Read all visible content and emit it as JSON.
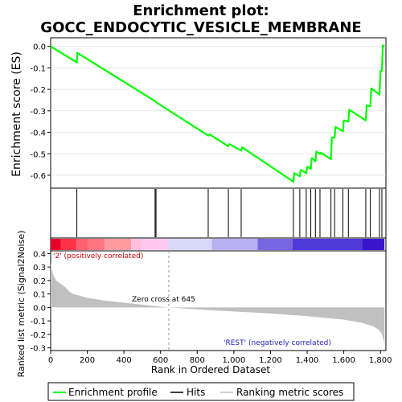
{
  "chart_data": [
    {
      "type": "line",
      "title": "Enrichment plot:\nGOCC_ENDOCYTIC_VESICLE_MEMBRANE",
      "ylabel": "Enrichment score (ES)",
      "ylim": [
        -0.66,
        0.04
      ],
      "yticks": [
        0.0,
        -0.1,
        -0.2,
        -0.3,
        -0.4,
        -0.5,
        -0.6
      ],
      "ytick_labels": [
        "0.0",
        "-0.1",
        "-0.2",
        "-0.3",
        "-0.4",
        "-0.5",
        "-0.6"
      ],
      "line_color": "#00ff00",
      "series": [
        {
          "name": "Enrichment profile",
          "x": [
            0,
            143,
            145,
            570,
            575,
            860,
            868,
            970,
            975,
            1040,
            1045,
            1325,
            1330,
            1360,
            1365,
            1395,
            1400,
            1420,
            1425,
            1445,
            1450,
            1470,
            1475,
            1530,
            1535,
            1550,
            1555,
            1595,
            1600,
            1625,
            1630,
            1720,
            1725,
            1745,
            1750,
            1795,
            1800,
            1808,
            1813,
            1822
          ],
          "y": [
            0.0,
            -0.075,
            -0.03,
            -0.255,
            -0.26,
            -0.415,
            -0.41,
            -0.465,
            -0.455,
            -0.485,
            -0.47,
            -0.63,
            -0.59,
            -0.605,
            -0.575,
            -0.59,
            -0.56,
            -0.57,
            -0.52,
            -0.535,
            -0.49,
            -0.5,
            -0.495,
            -0.525,
            -0.425,
            -0.425,
            -0.375,
            -0.395,
            -0.345,
            -0.35,
            -0.295,
            -0.345,
            -0.275,
            -0.28,
            -0.195,
            -0.225,
            -0.115,
            -0.115,
            0.005,
            0.0
          ]
        }
      ]
    },
    {
      "type": "hits",
      "hits": [
        143,
        570,
        575,
        860,
        970,
        1040,
        1325,
        1360,
        1395,
        1420,
        1445,
        1470,
        1530,
        1550,
        1595,
        1625,
        1720,
        1745,
        1795,
        1808
      ]
    },
    {
      "type": "area",
      "ylabel": "Ranked list metric (Signal2Noise)",
      "xlabel": "Rank in Ordered Dataset",
      "xlim": [
        0,
        1830
      ],
      "xticks": [
        0,
        200,
        400,
        600,
        800,
        1000,
        1200,
        1400,
        1600,
        1800
      ],
      "xtick_labels": [
        "0",
        "200",
        "400",
        "600",
        "800",
        "1,000",
        "1,200",
        "1,400",
        "1,600",
        "1,800"
      ],
      "ylim": [
        -0.32,
        0.42
      ],
      "yticks": [
        0.4,
        0.3,
        0.2,
        0.1,
        0.0,
        -0.1,
        -0.2,
        -0.3
      ],
      "ytick_labels": [
        "0.4",
        "0.3",
        "0.2",
        "0.1",
        "0.0",
        "-0.1",
        "-0.2",
        "-0.3"
      ],
      "x": [
        0,
        5,
        15,
        30,
        60,
        80,
        100,
        120,
        150,
        200,
        250,
        300,
        400,
        500,
        645,
        800,
        1000,
        1200,
        1400,
        1600,
        1700,
        1760,
        1790,
        1805,
        1815,
        1822
      ],
      "y": [
        0.33,
        0.29,
        0.24,
        0.2,
        0.17,
        0.15,
        0.12,
        0.1,
        0.09,
        0.07,
        0.06,
        0.05,
        0.035,
        0.02,
        0.0,
        -0.015,
        -0.03,
        -0.045,
        -0.065,
        -0.09,
        -0.115,
        -0.14,
        -0.165,
        -0.19,
        -0.23,
        -0.28
      ],
      "fill_color": "#c0c0c0",
      "zero_cross": 645,
      "zero_cross_label": "Zero cross at 645",
      "pos_label": "'2' (positively correlated)",
      "neg_label": "'REST' (negatively correlated)"
    }
  ],
  "heatbar": {
    "segments": [
      {
        "end": 55,
        "color": "#e8002a"
      },
      {
        "end": 140,
        "color": "#ff3346"
      },
      {
        "end": 205,
        "color": "#ff6070"
      },
      {
        "end": 295,
        "color": "#ff7580"
      },
      {
        "end": 440,
        "color": "#ff9aa0"
      },
      {
        "end": 500,
        "color": "#ffc0e0"
      },
      {
        "end": 640,
        "color": "#ffc8f0"
      },
      {
        "end": 880,
        "color": "#d8d8f8"
      },
      {
        "end": 1130,
        "color": "#b8b0f0"
      },
      {
        "end": 1320,
        "color": "#7766e0"
      },
      {
        "end": 1700,
        "color": "#4e3ada"
      },
      {
        "end": 1822,
        "color": "#3a14cc"
      }
    ]
  },
  "legend": {
    "items": [
      {
        "label": "Enrichment profile",
        "color": "#00ff00"
      },
      {
        "label": "Hits",
        "color": "#000000"
      },
      {
        "label": "Ranking metric scores",
        "color": "#c0c0c0"
      }
    ]
  }
}
